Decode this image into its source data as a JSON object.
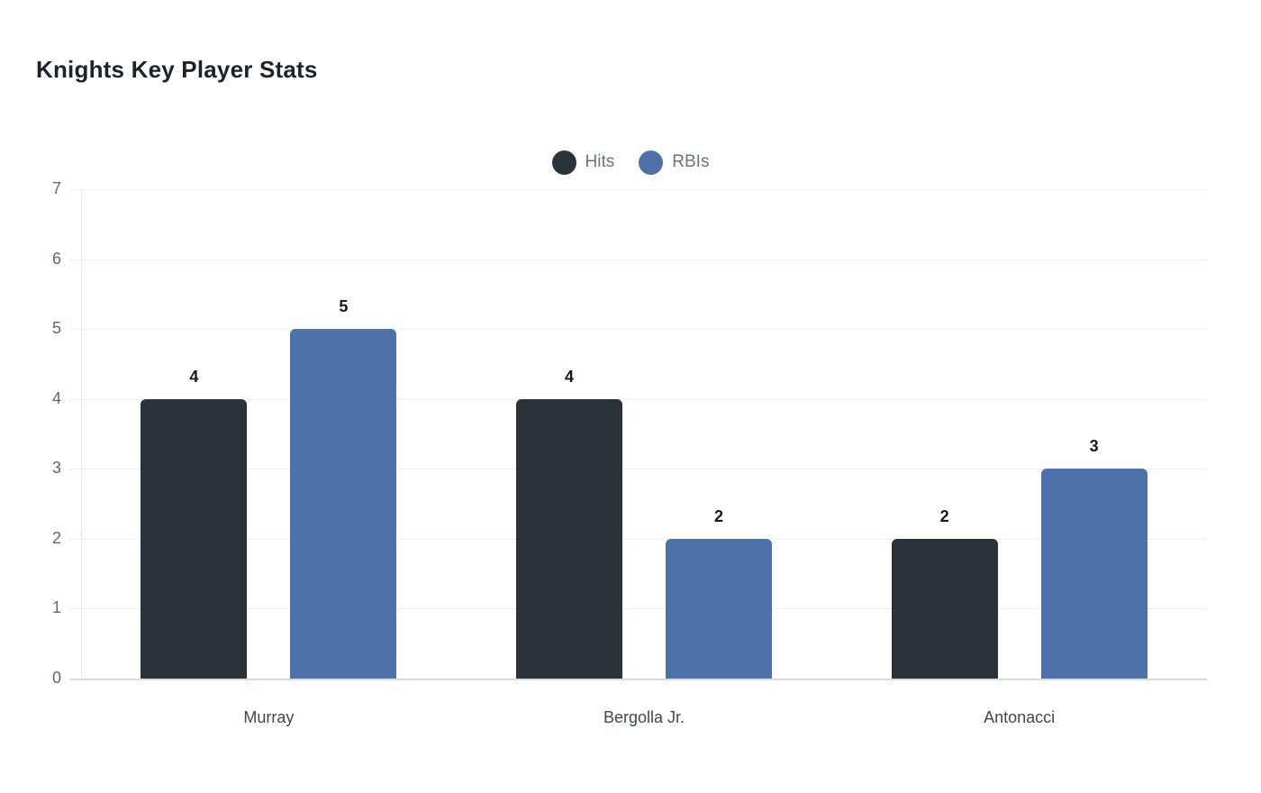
{
  "title": "Knights Key Player Stats",
  "chart_data": {
    "type": "bar",
    "title": "Knights Key Player Stats",
    "categories": [
      "Murray",
      "Bergolla Jr.",
      "Antonacci"
    ],
    "series": [
      {
        "name": "Hits",
        "color": "#2b333a",
        "values": [
          4,
          4,
          2
        ]
      },
      {
        "name": "RBIs",
        "color": "#4c72a9",
        "values": [
          5,
          2,
          3
        ]
      }
    ],
    "ylim": [
      0,
      7
    ],
    "yticks": [
      0,
      1,
      2,
      3,
      4,
      5,
      6,
      7
    ],
    "grid": true,
    "legend_position": "top-center",
    "value_labels": true,
    "xlabel": "",
    "ylabel": ""
  },
  "colors": {
    "background": "#ffffff",
    "title_text": "#1e2329",
    "legend_text": "#6a737b",
    "y_tick_text": "#5d6872",
    "x_label_text": "#3f4850",
    "value_label_text": "#14181c",
    "gridline": "#efefef",
    "baseline": "#d9dcde"
  }
}
